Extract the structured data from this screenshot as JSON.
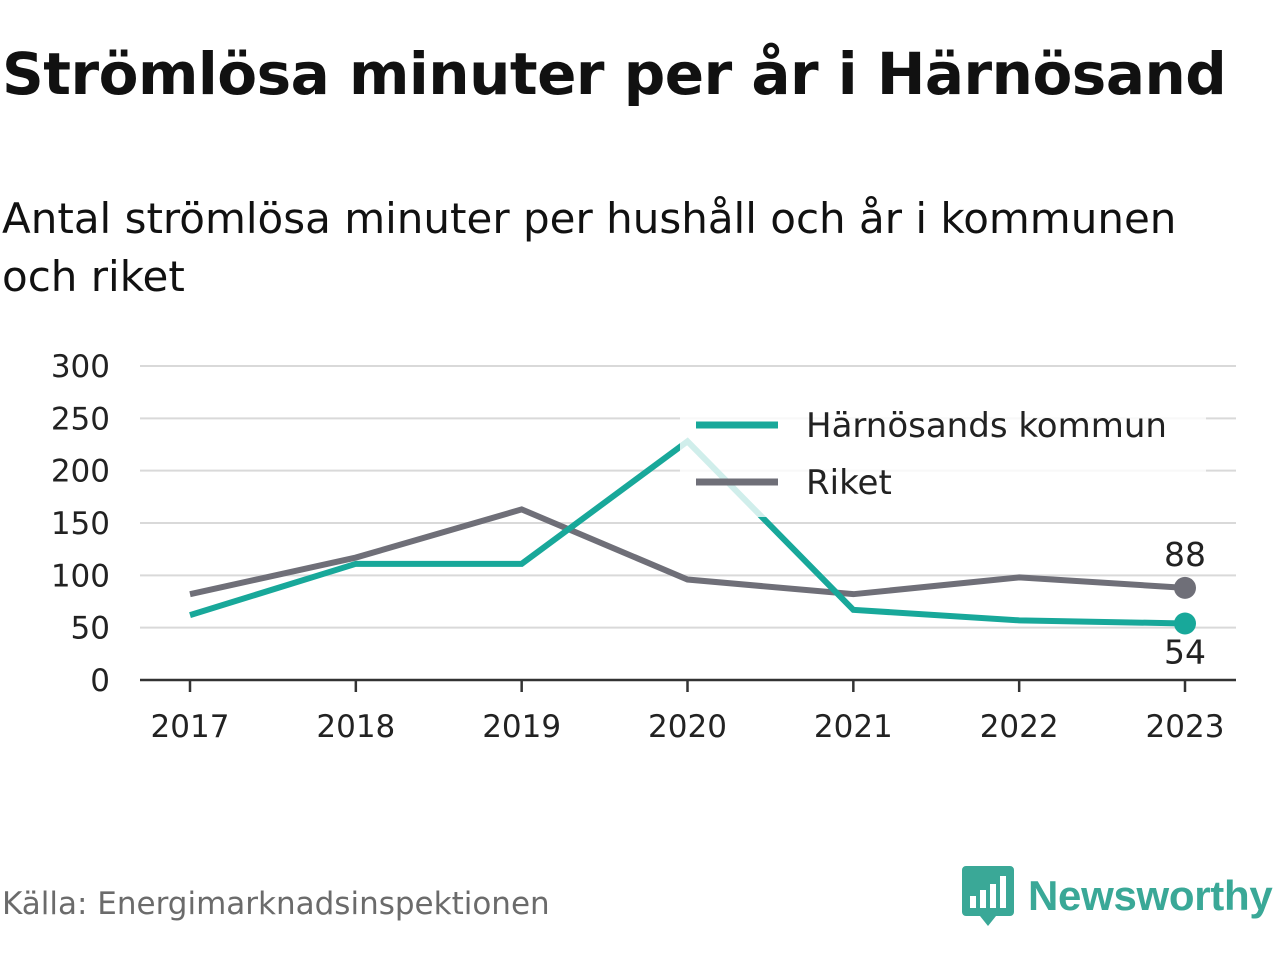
{
  "title": "Strömlösa minuter per år i Härnösand",
  "subtitle": "Antal strömlösa minuter per hushåll och år i kommunen och riket",
  "source": "Källa: Energimarknadsinspektionen",
  "brand": {
    "name": "Newsworthy",
    "icon": "bar-chart-speech-bubble-icon",
    "color": "#3aa897"
  },
  "chart_data": {
    "type": "line",
    "x": [
      "2017",
      "2018",
      "2019",
      "2020",
      "2021",
      "2022",
      "2023"
    ],
    "yticks": [
      "0",
      "50",
      "100",
      "150",
      "200",
      "250",
      "300"
    ],
    "ylim": [
      0,
      300
    ],
    "grid": true,
    "legend_position": "top-right",
    "series": [
      {
        "name": "Härnösands kommun",
        "color": "#18a89a",
        "values": [
          62,
          111,
          111,
          228,
          67,
          57,
          54
        ],
        "end_label": "54",
        "end_label_position": "below"
      },
      {
        "name": "Riket",
        "color": "#6f6f78",
        "values": [
          82,
          117,
          163,
          96,
          82,
          98,
          88
        ],
        "end_label": "88",
        "end_label_position": "above"
      }
    ]
  }
}
